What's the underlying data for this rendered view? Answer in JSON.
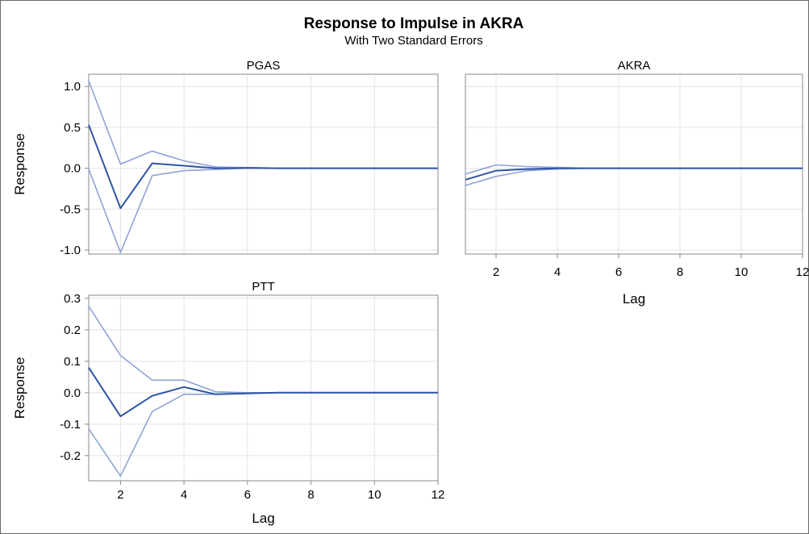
{
  "chart_data": {
    "type": "line",
    "title": "Response to Impulse in AKRA",
    "subtitle": "With Two Standard Errors",
    "colors": {
      "response": "#2f55a4",
      "bands": "#8ea3d6",
      "grid": "#e3e3e3",
      "axis": "#8a8a8a"
    },
    "grid": true,
    "panels": [
      {
        "title": "PGAS",
        "xlabel": "",
        "ylabel": "Response",
        "xlim": [
          1,
          12
        ],
        "ylim": [
          -1.05,
          1.15
        ],
        "yticks": [
          "1.0",
          "0.5",
          "0.0",
          "-0.5",
          "-1.0"
        ],
        "yticks_values": [
          1.0,
          0.5,
          0.0,
          -0.5,
          -1.0
        ],
        "xticks": [],
        "xgrid": [
          2,
          4,
          6,
          8,
          10,
          12
        ],
        "x": [
          1,
          2,
          3,
          4,
          5,
          6,
          7,
          8,
          9,
          10,
          11,
          12
        ],
        "series": [
          {
            "role": "response",
            "values": [
              0.53,
              -0.49,
              0.06,
              0.03,
              0.0,
              0.005,
              0.0,
              0.0,
              0.0,
              0.0,
              0.0,
              0.0
            ]
          },
          {
            "role": "upper",
            "values": [
              1.07,
              0.05,
              0.21,
              0.09,
              0.015,
              0.008,
              0.0,
              0.0,
              0.0,
              0.0,
              0.0,
              0.0
            ]
          },
          {
            "role": "lower",
            "values": [
              -0.01,
              -1.03,
              -0.09,
              -0.03,
              -0.015,
              0.0,
              0.0,
              0.0,
              0.0,
              0.0,
              0.0,
              0.0
            ]
          }
        ]
      },
      {
        "title": "AKRA",
        "xlabel": "Lag",
        "ylabel": "",
        "xlim": [
          1,
          12
        ],
        "ylim": [
          -1.05,
          1.15
        ],
        "yticks": [],
        "yticks_values": [
          1.0,
          0.5,
          0.0,
          -0.5,
          -1.0
        ],
        "xticks": [
          "2",
          "4",
          "6",
          "8",
          "10",
          "12"
        ],
        "xgrid": [
          2,
          4,
          6,
          8,
          10,
          12
        ],
        "x": [
          1,
          2,
          3,
          4,
          5,
          6,
          7,
          8,
          9,
          10,
          11,
          12
        ],
        "series": [
          {
            "role": "response",
            "values": [
              -0.14,
              -0.03,
              -0.01,
              0.0,
              0.0,
              0.0,
              0.0,
              0.0,
              0.0,
              0.0,
              0.0,
              0.0
            ]
          },
          {
            "role": "upper",
            "values": [
              -0.07,
              0.04,
              0.02,
              0.01,
              0.0,
              0.0,
              0.0,
              0.0,
              0.0,
              0.0,
              0.0,
              0.0
            ]
          },
          {
            "role": "lower",
            "values": [
              -0.21,
              -0.1,
              -0.03,
              -0.01,
              0.0,
              0.0,
              0.0,
              0.0,
              0.0,
              0.0,
              0.0,
              0.0
            ]
          }
        ]
      },
      {
        "title": "PTT",
        "xlabel": "Lag",
        "ylabel": "Response",
        "xlim": [
          1,
          12
        ],
        "ylim": [
          -0.28,
          0.31
        ],
        "yticks": [
          "0.3",
          "0.2",
          "0.1",
          "0.0",
          "-0.1",
          "-0.2"
        ],
        "yticks_values": [
          0.3,
          0.2,
          0.1,
          0.0,
          -0.1,
          -0.2
        ],
        "xticks": [
          "2",
          "4",
          "6",
          "8",
          "10",
          "12"
        ],
        "xgrid": [
          2,
          4,
          6,
          8,
          10,
          12
        ],
        "x": [
          1,
          2,
          3,
          4,
          5,
          6,
          7,
          8,
          9,
          10,
          11,
          12
        ],
        "series": [
          {
            "role": "response",
            "values": [
              0.08,
              -0.075,
              -0.01,
              0.018,
              -0.005,
              -0.002,
              0.0,
              0.0,
              0.0,
              0.0,
              0.0,
              0.0
            ]
          },
          {
            "role": "upper",
            "values": [
              0.275,
              0.118,
              0.04,
              0.04,
              0.003,
              0.0,
              0.0,
              0.0,
              0.0,
              0.0,
              0.0,
              0.0
            ]
          },
          {
            "role": "lower",
            "values": [
              -0.115,
              -0.265,
              -0.06,
              -0.005,
              -0.005,
              -0.003,
              0.0,
              0.0,
              0.0,
              0.0,
              0.0,
              0.0
            ]
          }
        ]
      }
    ]
  }
}
